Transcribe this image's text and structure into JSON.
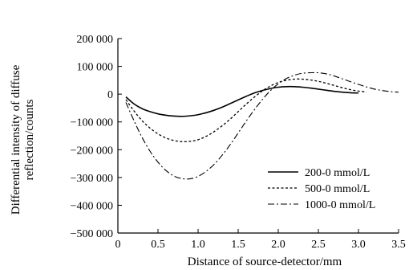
{
  "chart_data": {
    "type": "line",
    "xlabel": "Distance of source-detector/mm",
    "ylabel": [
      "Differential intensity of diffuse",
      "reflection/counts"
    ],
    "xlim": [
      0,
      3.5
    ],
    "ylim": [
      -500000,
      200000
    ],
    "x_ticks": [
      0,
      0.5,
      1.0,
      1.5,
      2.0,
      2.5,
      3.0,
      3.5
    ],
    "x_tick_labels": [
      "0",
      "0.5",
      "1.0",
      "1.5",
      "2.0",
      "2.5",
      "3.0",
      "3.5"
    ],
    "y_ticks": [
      200000,
      100000,
      0,
      -100000,
      -200000,
      -300000,
      -400000,
      -500000
    ],
    "y_tick_labels": [
      "200 000",
      "100 000",
      "0",
      "−100 000",
      "−200 000",
      "−300 000",
      "−400 000",
      "−500 000"
    ],
    "grid": false,
    "legend_position": "bottom-right",
    "series": [
      {
        "name": "200-0 mmol/L",
        "style": "solid",
        "x": [
          0.1,
          0.2,
          0.3,
          0.4,
          0.5,
          0.6,
          0.7,
          0.8,
          0.9,
          1.0,
          1.1,
          1.2,
          1.3,
          1.4,
          1.5,
          1.6,
          1.7,
          1.8,
          1.9,
          2.0,
          2.1,
          2.2,
          2.3,
          2.4,
          2.5,
          2.6,
          2.7,
          2.8,
          2.9,
          3.0
        ],
        "values": [
          -10000,
          -35000,
          -52000,
          -63000,
          -71000,
          -76000,
          -79000,
          -80000,
          -78000,
          -74000,
          -67000,
          -58000,
          -47000,
          -34000,
          -21000,
          -8000,
          4000,
          13000,
          20000,
          25000,
          27000,
          27000,
          25000,
          22000,
          18000,
          14000,
          10000,
          7000,
          5000,
          4000
        ]
      },
      {
        "name": "500-0 mmol/L",
        "style": "dashed",
        "x": [
          0.1,
          0.2,
          0.3,
          0.4,
          0.5,
          0.6,
          0.7,
          0.8,
          0.9,
          1.0,
          1.1,
          1.2,
          1.3,
          1.4,
          1.5,
          1.6,
          1.7,
          1.8,
          1.9,
          2.0,
          2.1,
          2.2,
          2.3,
          2.4,
          2.5,
          2.6,
          2.7,
          2.8,
          2.9,
          3.0,
          3.1
        ],
        "values": [
          -20000,
          -60000,
          -95000,
          -122000,
          -143000,
          -158000,
          -167000,
          -171000,
          -170000,
          -164000,
          -152000,
          -135000,
          -114000,
          -90000,
          -63000,
          -36000,
          -11000,
          11000,
          29000,
          42000,
          50000,
          54000,
          54000,
          51000,
          46000,
          39000,
          31000,
          23000,
          16000,
          11000,
          8000
        ]
      },
      {
        "name": "1000-0 mmol/L",
        "style": "dashdot",
        "x": [
          0.1,
          0.2,
          0.3,
          0.4,
          0.5,
          0.6,
          0.7,
          0.8,
          0.9,
          1.0,
          1.1,
          1.2,
          1.3,
          1.4,
          1.5,
          1.6,
          1.7,
          1.8,
          1.9,
          2.0,
          2.1,
          2.2,
          2.3,
          2.4,
          2.5,
          2.6,
          2.7,
          2.8,
          2.9,
          3.0,
          3.1,
          3.2,
          3.3,
          3.4,
          3.5
        ],
        "values": [
          -30000,
          -95000,
          -155000,
          -205000,
          -245000,
          -275000,
          -295000,
          -304000,
          -305000,
          -296000,
          -278000,
          -253000,
          -220000,
          -182000,
          -140000,
          -97000,
          -57000,
          -20000,
          12000,
          37000,
          56000,
          68000,
          75000,
          77000,
          77000,
          73000,
          65000,
          55000,
          45000,
          35000,
          26000,
          18000,
          13000,
          9000,
          7000
        ]
      }
    ]
  }
}
